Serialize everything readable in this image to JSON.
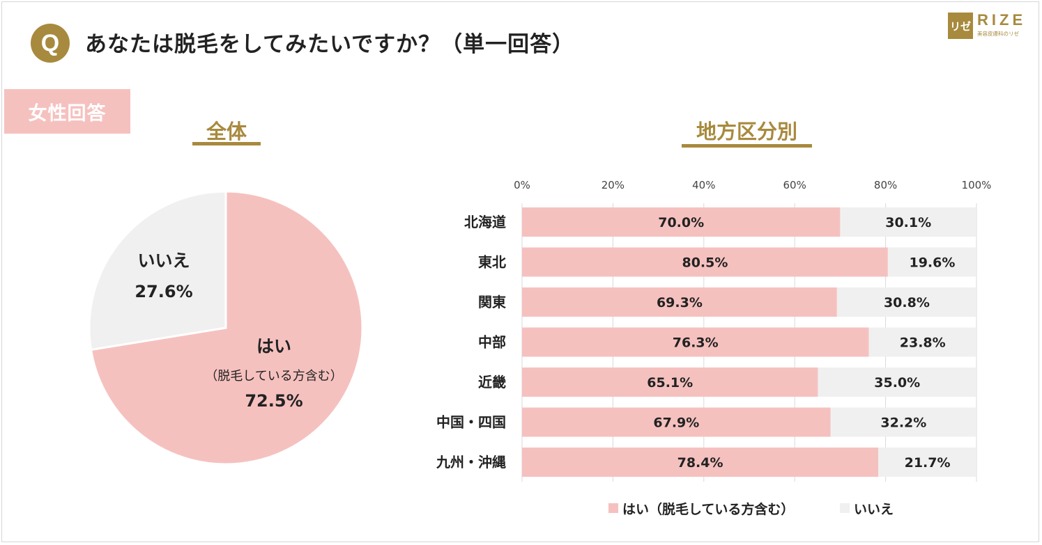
{
  "question": {
    "badge": "Q",
    "text": "あなたは脱毛をしてみたいですか？（単一回答）"
  },
  "logo": {
    "mark": "リゼ",
    "word": "RIZE",
    "sub": "美容皮膚科のリゼ"
  },
  "respondent": "女性回答",
  "sections": {
    "overall": "全体",
    "by_region": "地方区分別"
  },
  "colors": {
    "yes": "#f5c1bf",
    "no": "#f0f0f0",
    "accent": "#a88a3e"
  },
  "chart_data": [
    {
      "type": "pie",
      "title": "全体",
      "slices": [
        {
          "label": "はい",
          "sublabel": "（脱毛している方含む）",
          "value": 72.5,
          "display": "72.5%"
        },
        {
          "label": "いいえ",
          "value": 27.6,
          "display": "27.6%"
        }
      ]
    },
    {
      "type": "bar",
      "orientation": "horizontal",
      "stacked": true,
      "title": "地方区分別",
      "categories": [
        "北海道",
        "東北",
        "関東",
        "中部",
        "近畿",
        "中国・四国",
        "九州・沖縄"
      ],
      "series": [
        {
          "name": "はい（脱毛している方含む）",
          "values": [
            70.0,
            80.5,
            69.3,
            76.3,
            65.1,
            67.9,
            78.4
          ]
        },
        {
          "name": "いいえ",
          "values": [
            30.1,
            19.6,
            30.8,
            23.8,
            35.0,
            32.2,
            21.7
          ]
        }
      ],
      "xlim": [
        0,
        100
      ],
      "x_ticks": [
        "0%",
        "20%",
        "40%",
        "60%",
        "80%",
        "100%"
      ],
      "grid": true,
      "legend": "bottom"
    }
  ]
}
